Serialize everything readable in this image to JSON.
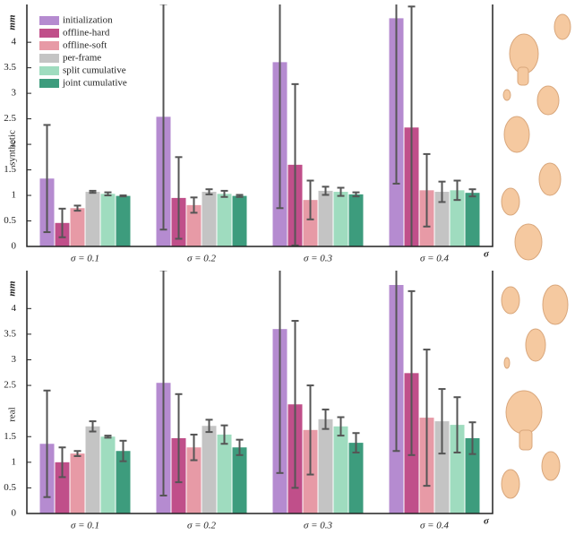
{
  "chart_data": [
    {
      "type": "bar",
      "ylabel": "mm",
      "side_label": "synthetic",
      "xlabel": "σ",
      "categories": [
        "σ = 0.1",
        "σ = 0.2",
        "σ = 0.3",
        "σ = 0.4"
      ],
      "ylim": [
        0,
        4.74
      ],
      "yticks": [
        0,
        0.5,
        1,
        1.5,
        2,
        2.5,
        3,
        3.5,
        4
      ],
      "series": [
        {
          "name": "initialization",
          "color": "#b58bd0",
          "values": [
            1.33,
            2.54,
            3.61,
            4.47
          ],
          "errors": [
            1.05,
            2.21,
            2.86,
            3.24
          ]
        },
        {
          "name": "offline-hard",
          "color": "#c04f8a",
          "values": [
            0.46,
            0.95,
            1.6,
            2.33
          ],
          "errors": [
            0.28,
            0.8,
            1.58,
            2.37
          ]
        },
        {
          "name": "offline-soft",
          "color": "#e79aa6",
          "values": [
            0.75,
            0.81,
            0.91,
            1.1
          ],
          "errors": [
            0.05,
            0.15,
            0.38,
            0.71
          ]
        },
        {
          "name": "per-frame",
          "color": "#c4c4c4",
          "values": [
            1.07,
            1.07,
            1.09,
            1.07
          ],
          "errors": [
            0.02,
            0.05,
            0.08,
            0.2
          ]
        },
        {
          "name": "split cumulative",
          "color": "#9fdcbf",
          "values": [
            1.03,
            1.03,
            1.07,
            1.1
          ],
          "errors": [
            0.03,
            0.06,
            0.08,
            0.19
          ]
        },
        {
          "name": "joint cumulative",
          "color": "#3d9c7d",
          "values": [
            0.99,
            0.99,
            1.02,
            1.05
          ],
          "errors": [
            0.01,
            0.02,
            0.04,
            0.07
          ]
        }
      ]
    },
    {
      "type": "bar",
      "ylabel": "mm",
      "side_label": "real",
      "xlabel": "σ",
      "categories": [
        "σ = 0.1",
        "σ = 0.2",
        "σ = 0.3",
        "σ = 0.4"
      ],
      "ylim": [
        0,
        4.74
      ],
      "yticks": [
        0,
        0.5,
        1,
        1.5,
        2.5,
        3,
        3.5,
        4
      ],
      "series": [
        {
          "color": "#b58bd0",
          "values": [
            1.36,
            2.55,
            3.6,
            4.46
          ],
          "errors": [
            1.04,
            2.2,
            2.81,
            3.24
          ]
        },
        {
          "color": "#c04f8a",
          "values": [
            1.0,
            1.47,
            2.13,
            2.74
          ],
          "errors": [
            0.29,
            0.86,
            1.63,
            1.6
          ]
        },
        {
          "color": "#e79aa6",
          "values": [
            1.17,
            1.29,
            1.63,
            1.87
          ],
          "errors": [
            0.05,
            0.25,
            0.87,
            1.33
          ]
        },
        {
          "color": "#c4c4c4",
          "values": [
            1.7,
            1.71,
            1.84,
            1.8
          ],
          "errors": [
            0.1,
            0.12,
            0.19,
            0.63
          ]
        },
        {
          "color": "#9fdcbf",
          "values": [
            1.5,
            1.54,
            1.7,
            1.73
          ],
          "errors": [
            0.02,
            0.18,
            0.18,
            0.54
          ]
        },
        {
          "color": "#3d9c7d",
          "values": [
            1.22,
            1.29,
            1.38,
            1.47
          ],
          "errors": [
            0.2,
            0.15,
            0.19,
            0.31
          ]
        }
      ]
    }
  ]
}
